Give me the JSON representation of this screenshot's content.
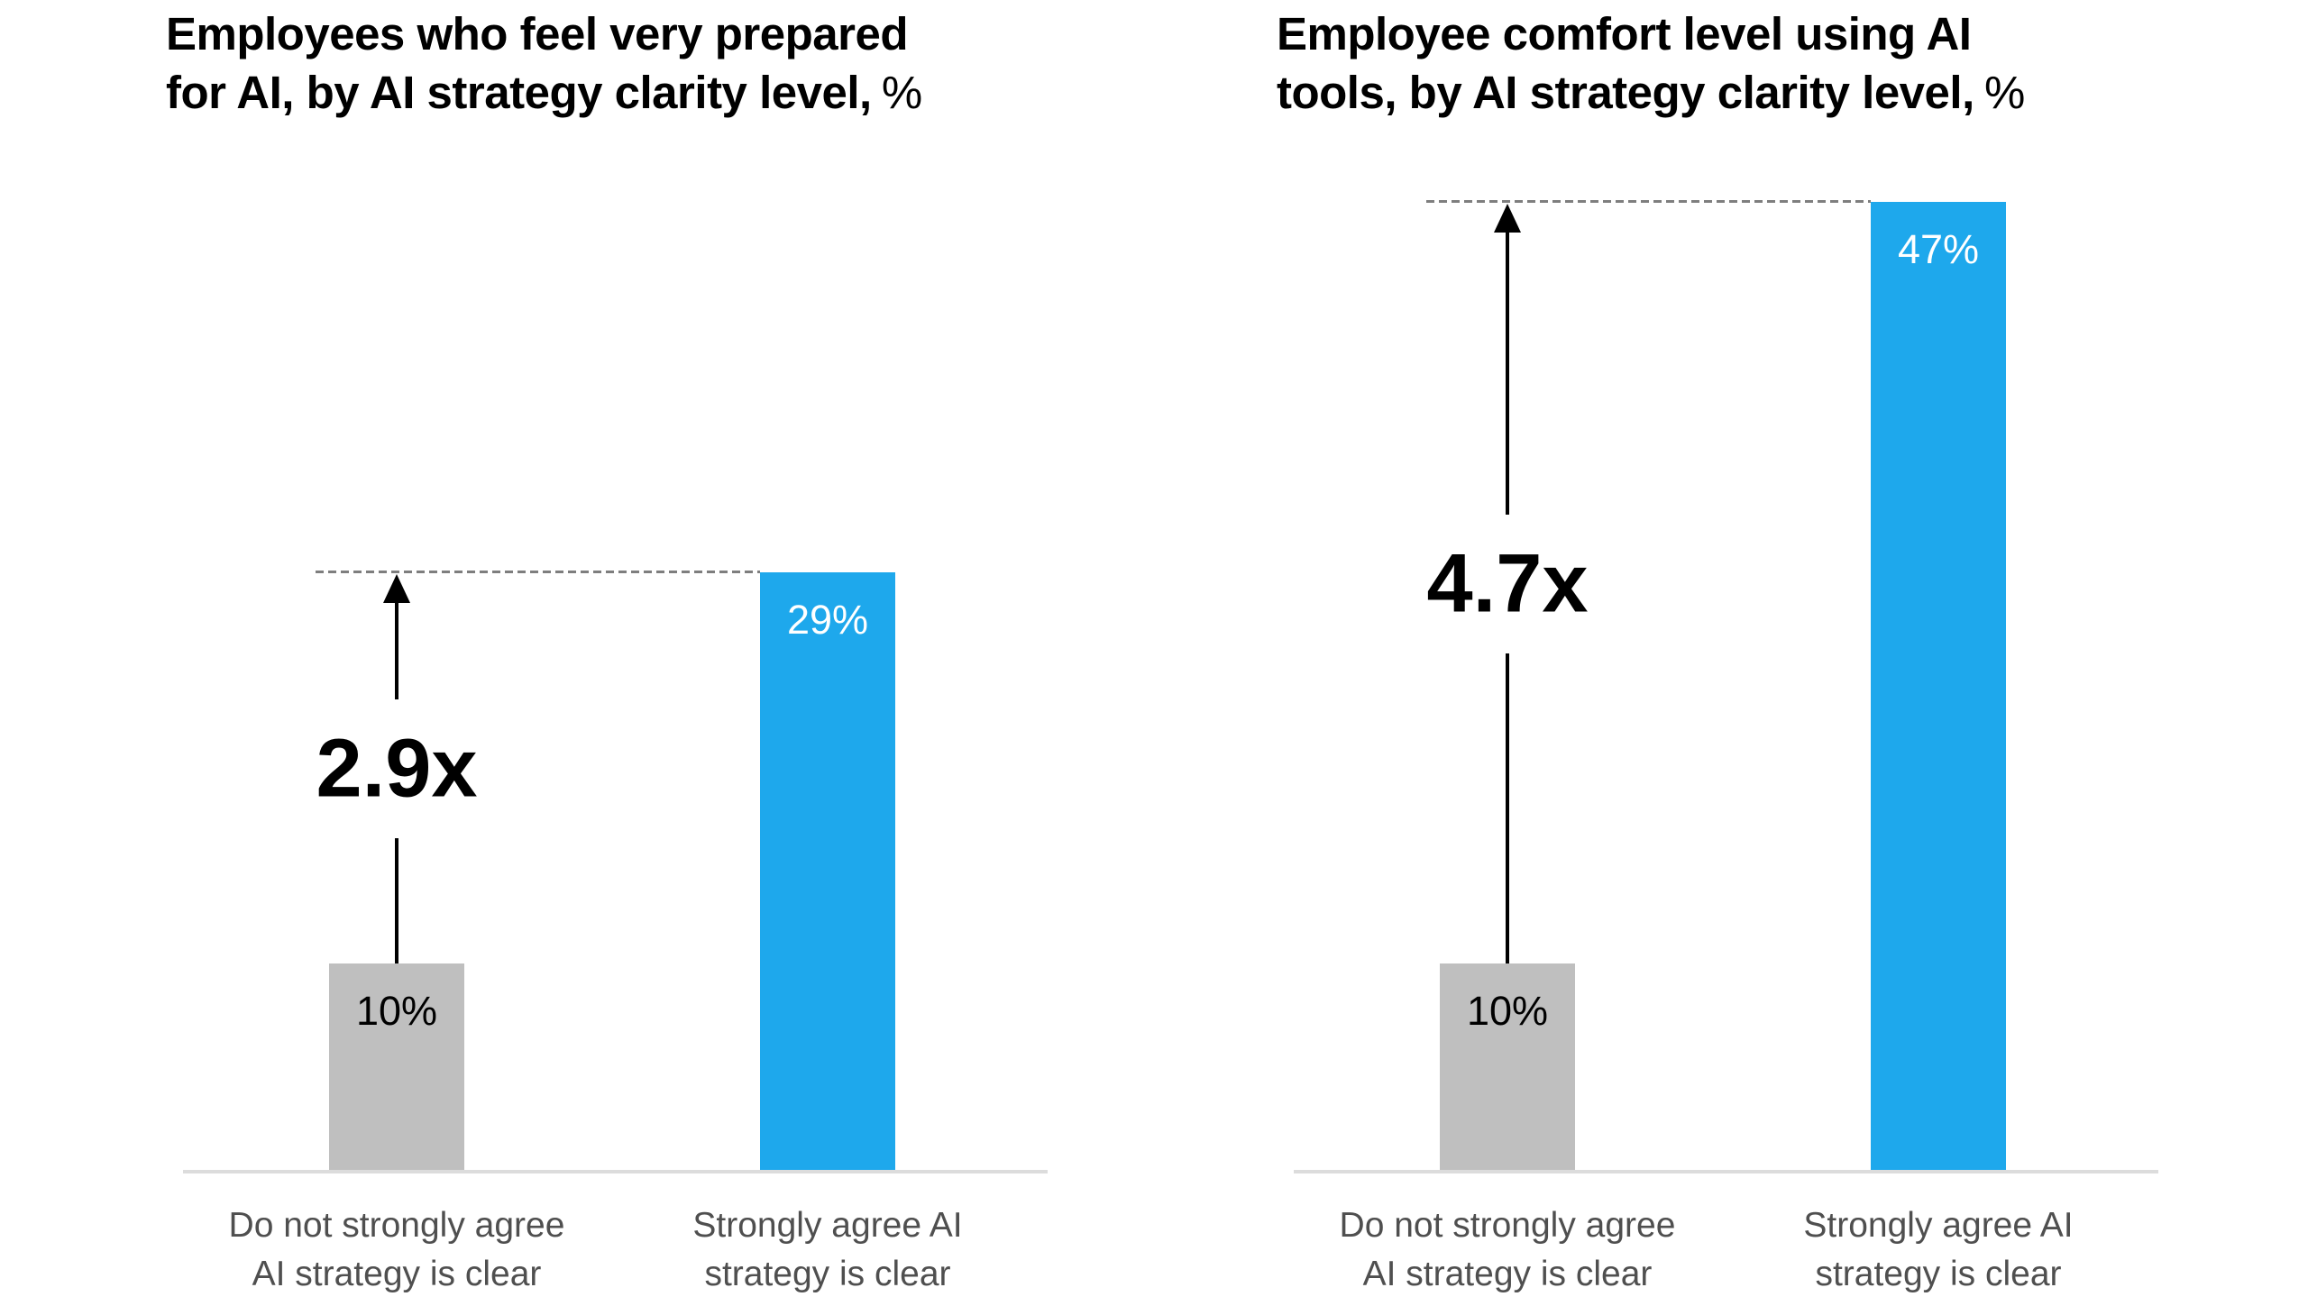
{
  "page": {
    "background": "#ffffff"
  },
  "colors": {
    "bar_gray": "#bfbfbf",
    "bar_blue": "#1ea8ec",
    "axis_line": "#dcdcdc",
    "dashed_reference_line": "#7e7e7e",
    "category_label_text": "#4f4f4f",
    "value_on_gray": "#000000",
    "value_on_blue": "#ffffff",
    "multiplier_text": "#000000"
  },
  "chart_data": [
    {
      "type": "bar",
      "title": "Employees who feel very prepared for AI, by AI strategy clarity level, %",
      "title_line1": "Employees who feel very prepared",
      "title_line2": "for AI, by AI strategy clarity level,",
      "title_unit": "%",
      "xlabel": "",
      "ylabel": "",
      "grid": false,
      "legend": "none",
      "value_suffix": "%",
      "categories": [
        {
          "line1": "Do not strongly agree",
          "line2": "AI strategy is clear"
        },
        {
          "line1": "Strongly agree AI",
          "line2": "strategy is clear"
        }
      ],
      "values": [
        10,
        29
      ],
      "value_labels": [
        "10%",
        "29%"
      ],
      "bar_colors": [
        "#bfbfbf",
        "#1ea8ec"
      ],
      "multiplier": "2.9x",
      "annotations": {
        "arrow": true,
        "dashed_reference_line_at_value": 29
      }
    },
    {
      "type": "bar",
      "title": "Employee comfort level using AI tools, by AI strategy clarity level, %",
      "title_line1": "Employee comfort level using AI",
      "title_line2": "tools, by AI strategy clarity level,",
      "title_unit": "%",
      "xlabel": "",
      "ylabel": "",
      "grid": false,
      "legend": "none",
      "value_suffix": "%",
      "categories": [
        {
          "line1": "Do not strongly agree",
          "line2": "AI strategy is clear"
        },
        {
          "line1": "Strongly agree AI",
          "line2": "strategy is clear"
        }
      ],
      "values": [
        10,
        47
      ],
      "value_labels": [
        "10%",
        "47%"
      ],
      "bar_colors": [
        "#bfbfbf",
        "#1ea8ec"
      ],
      "multiplier": "4.7x",
      "annotations": {
        "arrow": true,
        "dashed_reference_line_at_value": 47
      }
    }
  ]
}
